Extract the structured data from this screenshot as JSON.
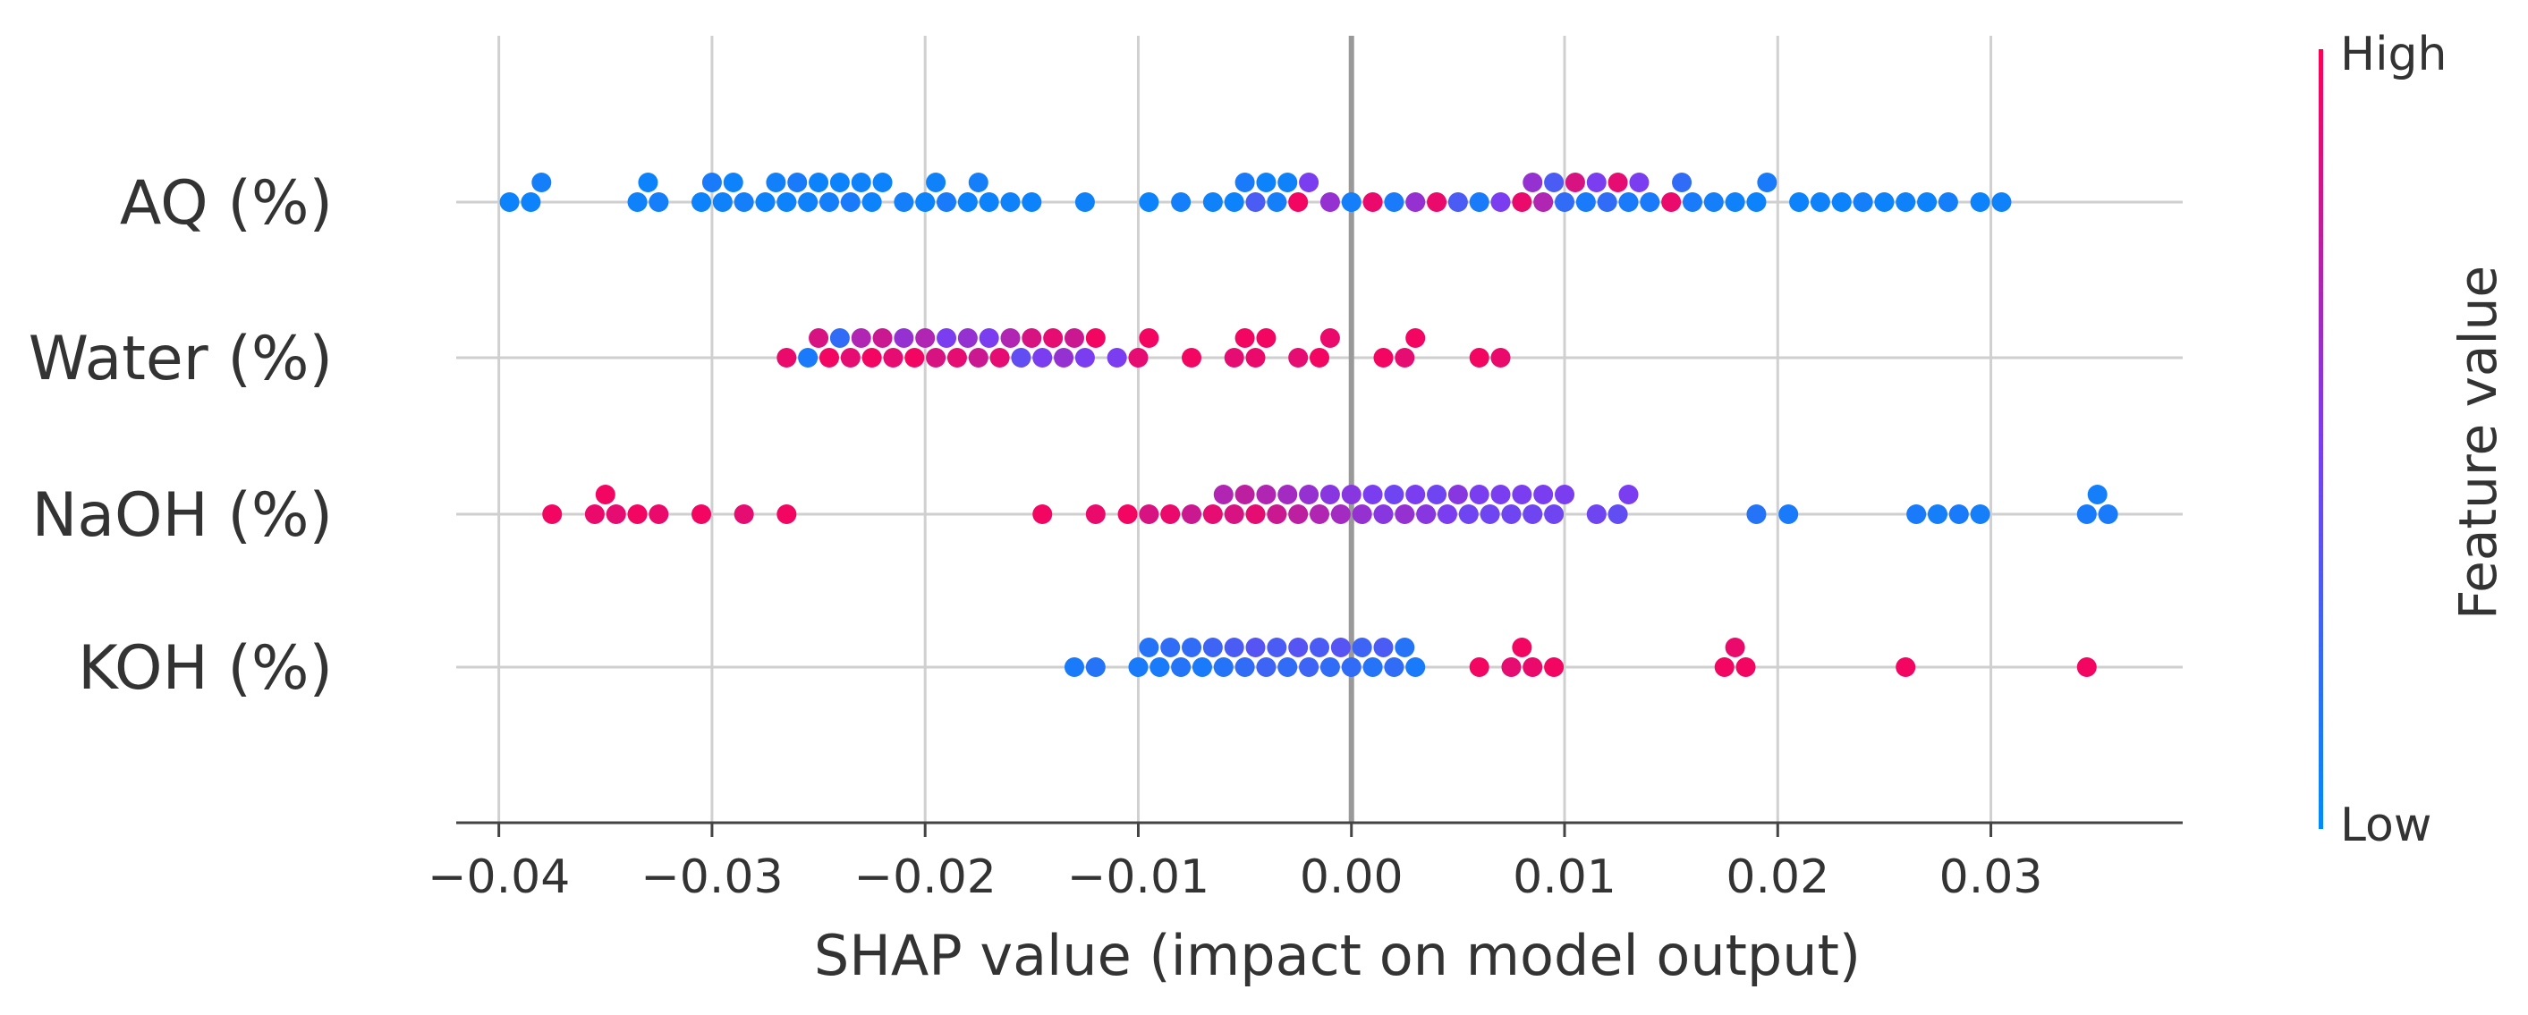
{
  "chart_data": {
    "type": "scatter",
    "subtype": "shap-beeswarm",
    "title": "",
    "xlabel": "SHAP value (impact on model output)",
    "ylabel": "",
    "xlim": [
      -0.042,
      0.039
    ],
    "x_ticks": [
      -0.04,
      -0.03,
      -0.02,
      -0.01,
      0.0,
      0.01,
      0.02,
      0.03
    ],
    "x_tick_labels": [
      "−0.04",
      "−0.03",
      "−0.02",
      "−0.01",
      "0.00",
      "0.01",
      "0.02",
      "0.03"
    ],
    "grid": true,
    "colorbar": {
      "title": "Feature value",
      "high_label": "High",
      "low_label": "Low",
      "high_color": "#ff0052",
      "low_color": "#008bfb"
    },
    "features": [
      {
        "name": "AQ (%)",
        "points": [
          {
            "x": -0.0395,
            "v": 0.05
          },
          {
            "x": -0.0385,
            "v": 0.05
          },
          {
            "x": -0.038,
            "v": 0.08
          },
          {
            "x": -0.0335,
            "v": 0.06
          },
          {
            "x": -0.033,
            "v": 0.05
          },
          {
            "x": -0.0325,
            "v": 0.08
          },
          {
            "x": -0.0305,
            "v": 0.05
          },
          {
            "x": -0.03,
            "v": 0.1
          },
          {
            "x": -0.0295,
            "v": 0.06
          },
          {
            "x": -0.029,
            "v": 0.05
          },
          {
            "x": -0.0285,
            "v": 0.08
          },
          {
            "x": -0.0275,
            "v": 0.05
          },
          {
            "x": -0.027,
            "v": 0.07
          },
          {
            "x": -0.0265,
            "v": 0.05
          },
          {
            "x": -0.026,
            "v": 0.1
          },
          {
            "x": -0.0255,
            "v": 0.06
          },
          {
            "x": -0.025,
            "v": 0.05
          },
          {
            "x": -0.0245,
            "v": 0.08
          },
          {
            "x": -0.024,
            "v": 0.05
          },
          {
            "x": -0.0235,
            "v": 0.1
          },
          {
            "x": -0.023,
            "v": 0.06
          },
          {
            "x": -0.0225,
            "v": 0.05
          },
          {
            "x": -0.022,
            "v": 0.05
          },
          {
            "x": -0.021,
            "v": 0.08
          },
          {
            "x": -0.02,
            "v": 0.05
          },
          {
            "x": -0.0195,
            "v": 0.06
          },
          {
            "x": -0.019,
            "v": 0.1
          },
          {
            "x": -0.018,
            "v": 0.05
          },
          {
            "x": -0.0175,
            "v": 0.08
          },
          {
            "x": -0.017,
            "v": 0.05
          },
          {
            "x": -0.016,
            "v": 0.06
          },
          {
            "x": -0.015,
            "v": 0.05
          },
          {
            "x": -0.0125,
            "v": 0.06
          },
          {
            "x": -0.0095,
            "v": 0.05
          },
          {
            "x": -0.008,
            "v": 0.08
          },
          {
            "x": -0.0065,
            "v": 0.06
          },
          {
            "x": -0.0055,
            "v": 0.05
          },
          {
            "x": -0.005,
            "v": 0.1
          },
          {
            "x": -0.0045,
            "v": 0.3
          },
          {
            "x": -0.004,
            "v": 0.05
          },
          {
            "x": -0.0035,
            "v": 0.08
          },
          {
            "x": -0.003,
            "v": 0.06
          },
          {
            "x": -0.0025,
            "v": 0.95
          },
          {
            "x": -0.002,
            "v": 0.5
          },
          {
            "x": -0.001,
            "v": 0.6
          },
          {
            "x": 0.0,
            "v": 0.08
          },
          {
            "x": 0.001,
            "v": 0.92
          },
          {
            "x": 0.002,
            "v": 0.1
          },
          {
            "x": 0.003,
            "v": 0.6
          },
          {
            "x": 0.004,
            "v": 0.92
          },
          {
            "x": 0.005,
            "v": 0.3
          },
          {
            "x": 0.006,
            "v": 0.1
          },
          {
            "x": 0.007,
            "v": 0.5
          },
          {
            "x": 0.008,
            "v": 0.92
          },
          {
            "x": 0.0085,
            "v": 0.6
          },
          {
            "x": 0.009,
            "v": 0.7
          },
          {
            "x": 0.0095,
            "v": 0.3
          },
          {
            "x": 0.01,
            "v": 0.2
          },
          {
            "x": 0.0105,
            "v": 0.85
          },
          {
            "x": 0.011,
            "v": 0.1
          },
          {
            "x": 0.0115,
            "v": 0.5
          },
          {
            "x": 0.012,
            "v": 0.2
          },
          {
            "x": 0.0125,
            "v": 0.9
          },
          {
            "x": 0.013,
            "v": 0.1
          },
          {
            "x": 0.0135,
            "v": 0.5
          },
          {
            "x": 0.014,
            "v": 0.1
          },
          {
            "x": 0.015,
            "v": 0.92
          },
          {
            "x": 0.0155,
            "v": 0.2
          },
          {
            "x": 0.016,
            "v": 0.1
          },
          {
            "x": 0.017,
            "v": 0.08
          },
          {
            "x": 0.018,
            "v": 0.06
          },
          {
            "x": 0.019,
            "v": 0.05
          },
          {
            "x": 0.0195,
            "v": 0.1
          },
          {
            "x": 0.021,
            "v": 0.05
          },
          {
            "x": 0.022,
            "v": 0.06
          },
          {
            "x": 0.023,
            "v": 0.05
          },
          {
            "x": 0.024,
            "v": 0.08
          },
          {
            "x": 0.025,
            "v": 0.05
          },
          {
            "x": 0.026,
            "v": 0.06
          },
          {
            "x": 0.027,
            "v": 0.05
          },
          {
            "x": 0.028,
            "v": 0.08
          },
          {
            "x": 0.0295,
            "v": 0.05
          },
          {
            "x": 0.0305,
            "v": 0.06
          }
        ]
      },
      {
        "name": "Water (%)",
        "points": [
          {
            "x": -0.0265,
            "v": 0.92
          },
          {
            "x": -0.0255,
            "v": 0.1
          },
          {
            "x": -0.025,
            "v": 0.85
          },
          {
            "x": -0.0245,
            "v": 0.95
          },
          {
            "x": -0.024,
            "v": 0.2
          },
          {
            "x": -0.0235,
            "v": 0.9
          },
          {
            "x": -0.023,
            "v": 0.7
          },
          {
            "x": -0.0225,
            "v": 0.95
          },
          {
            "x": -0.022,
            "v": 0.8
          },
          {
            "x": -0.0215,
            "v": 0.9
          },
          {
            "x": -0.021,
            "v": 0.6
          },
          {
            "x": -0.0205,
            "v": 0.95
          },
          {
            "x": -0.02,
            "v": 0.7
          },
          {
            "x": -0.0195,
            "v": 0.85
          },
          {
            "x": -0.019,
            "v": 0.5
          },
          {
            "x": -0.0185,
            "v": 0.9
          },
          {
            "x": -0.018,
            "v": 0.6
          },
          {
            "x": -0.0175,
            "v": 0.8
          },
          {
            "x": -0.017,
            "v": 0.5
          },
          {
            "x": -0.0165,
            "v": 0.9
          },
          {
            "x": -0.016,
            "v": 0.7
          },
          {
            "x": -0.0155,
            "v": 0.4
          },
          {
            "x": -0.015,
            "v": 0.85
          },
          {
            "x": -0.0145,
            "v": 0.5
          },
          {
            "x": -0.014,
            "v": 0.9
          },
          {
            "x": -0.0135,
            "v": 0.6
          },
          {
            "x": -0.013,
            "v": 0.8
          },
          {
            "x": -0.0125,
            "v": 0.5
          },
          {
            "x": -0.012,
            "v": 0.95
          },
          {
            "x": -0.011,
            "v": 0.5
          },
          {
            "x": -0.01,
            "v": 0.9
          },
          {
            "x": -0.0095,
            "v": 0.95
          },
          {
            "x": -0.0075,
            "v": 0.95
          },
          {
            "x": -0.0055,
            "v": 0.9
          },
          {
            "x": -0.005,
            "v": 0.95
          },
          {
            "x": -0.0045,
            "v": 0.92
          },
          {
            "x": -0.004,
            "v": 0.95
          },
          {
            "x": -0.0025,
            "v": 0.9
          },
          {
            "x": -0.0015,
            "v": 0.95
          },
          {
            "x": -0.001,
            "v": 0.92
          },
          {
            "x": 0.0015,
            "v": 0.95
          },
          {
            "x": 0.0025,
            "v": 0.9
          },
          {
            "x": 0.003,
            "v": 0.95
          },
          {
            "x": 0.006,
            "v": 0.95
          },
          {
            "x": 0.007,
            "v": 0.92
          }
        ]
      },
      {
        "name": "NaOH (%)",
        "points": [
          {
            "x": -0.0375,
            "v": 0.95
          },
          {
            "x": -0.0355,
            "v": 0.92
          },
          {
            "x": -0.035,
            "v": 0.95
          },
          {
            "x": -0.0345,
            "v": 0.9
          },
          {
            "x": -0.0335,
            "v": 0.95
          },
          {
            "x": -0.0325,
            "v": 0.92
          },
          {
            "x": -0.0305,
            "v": 0.95
          },
          {
            "x": -0.0285,
            "v": 0.9
          },
          {
            "x": -0.0265,
            "v": 0.95
          },
          {
            "x": -0.0145,
            "v": 0.95
          },
          {
            "x": -0.012,
            "v": 0.92
          },
          {
            "x": -0.0105,
            "v": 0.95
          },
          {
            "x": -0.0095,
            "v": 0.85
          },
          {
            "x": -0.0085,
            "v": 0.92
          },
          {
            "x": -0.0075,
            "v": 0.8
          },
          {
            "x": -0.0065,
            "v": 0.9
          },
          {
            "x": -0.006,
            "v": 0.7
          },
          {
            "x": -0.0055,
            "v": 0.85
          },
          {
            "x": -0.005,
            "v": 0.75
          },
          {
            "x": -0.0045,
            "v": 0.9
          },
          {
            "x": -0.004,
            "v": 0.7
          },
          {
            "x": -0.0035,
            "v": 0.8
          },
          {
            "x": -0.003,
            "v": 0.65
          },
          {
            "x": -0.0025,
            "v": 0.75
          },
          {
            "x": -0.002,
            "v": 0.6
          },
          {
            "x": -0.0015,
            "v": 0.7
          },
          {
            "x": -0.001,
            "v": 0.55
          },
          {
            "x": -0.0005,
            "v": 0.65
          },
          {
            "x": 0.0,
            "v": 0.55
          },
          {
            "x": 0.0005,
            "v": 0.6
          },
          {
            "x": 0.001,
            "v": 0.5
          },
          {
            "x": 0.0015,
            "v": 0.55
          },
          {
            "x": 0.002,
            "v": 0.45
          },
          {
            "x": 0.0025,
            "v": 0.6
          },
          {
            "x": 0.003,
            "v": 0.5
          },
          {
            "x": 0.0035,
            "v": 0.55
          },
          {
            "x": 0.004,
            "v": 0.45
          },
          {
            "x": 0.0045,
            "v": 0.5
          },
          {
            "x": 0.005,
            "v": 0.55
          },
          {
            "x": 0.0055,
            "v": 0.45
          },
          {
            "x": 0.006,
            "v": 0.5
          },
          {
            "x": 0.0065,
            "v": 0.45
          },
          {
            "x": 0.007,
            "v": 0.5
          },
          {
            "x": 0.0075,
            "v": 0.45
          },
          {
            "x": 0.008,
            "v": 0.5
          },
          {
            "x": 0.0085,
            "v": 0.45
          },
          {
            "x": 0.009,
            "v": 0.5
          },
          {
            "x": 0.0095,
            "v": 0.45
          },
          {
            "x": 0.01,
            "v": 0.5
          },
          {
            "x": 0.0115,
            "v": 0.45
          },
          {
            "x": 0.0125,
            "v": 0.4
          },
          {
            "x": 0.013,
            "v": 0.5
          },
          {
            "x": 0.019,
            "v": 0.15
          },
          {
            "x": 0.0205,
            "v": 0.1
          },
          {
            "x": 0.0265,
            "v": 0.1
          },
          {
            "x": 0.0275,
            "v": 0.08
          },
          {
            "x": 0.0285,
            "v": 0.1
          },
          {
            "x": 0.0295,
            "v": 0.08
          },
          {
            "x": 0.0345,
            "v": 0.1
          },
          {
            "x": 0.035,
            "v": 0.08
          },
          {
            "x": 0.0355,
            "v": 0.1
          }
        ]
      },
      {
        "name": "KOH (%)",
        "points": [
          {
            "x": -0.013,
            "v": 0.1
          },
          {
            "x": -0.012,
            "v": 0.15
          },
          {
            "x": -0.01,
            "v": 0.1
          },
          {
            "x": -0.0095,
            "v": 0.15
          },
          {
            "x": -0.009,
            "v": 0.1
          },
          {
            "x": -0.0085,
            "v": 0.2
          },
          {
            "x": -0.008,
            "v": 0.15
          },
          {
            "x": -0.0075,
            "v": 0.2
          },
          {
            "x": -0.007,
            "v": 0.1
          },
          {
            "x": -0.0065,
            "v": 0.25
          },
          {
            "x": -0.006,
            "v": 0.15
          },
          {
            "x": -0.0055,
            "v": 0.3
          },
          {
            "x": -0.005,
            "v": 0.2
          },
          {
            "x": -0.0045,
            "v": 0.35
          },
          {
            "x": -0.004,
            "v": 0.25
          },
          {
            "x": -0.0035,
            "v": 0.3
          },
          {
            "x": -0.003,
            "v": 0.2
          },
          {
            "x": -0.0025,
            "v": 0.35
          },
          {
            "x": -0.002,
            "v": 0.25
          },
          {
            "x": -0.0015,
            "v": 0.3
          },
          {
            "x": -0.001,
            "v": 0.2
          },
          {
            "x": -0.0005,
            "v": 0.35
          },
          {
            "x": 0.0,
            "v": 0.2
          },
          {
            "x": 0.0005,
            "v": 0.25
          },
          {
            "x": 0.001,
            "v": 0.15
          },
          {
            "x": 0.0015,
            "v": 0.3
          },
          {
            "x": 0.002,
            "v": 0.2
          },
          {
            "x": 0.0025,
            "v": 0.15
          },
          {
            "x": 0.003,
            "v": 0.1
          },
          {
            "x": 0.006,
            "v": 0.95
          },
          {
            "x": 0.0075,
            "v": 0.9
          },
          {
            "x": 0.008,
            "v": 0.95
          },
          {
            "x": 0.0085,
            "v": 0.92
          },
          {
            "x": 0.0095,
            "v": 0.95
          },
          {
            "x": 0.0175,
            "v": 0.95
          },
          {
            "x": 0.018,
            "v": 0.92
          },
          {
            "x": 0.0185,
            "v": 0.95
          },
          {
            "x": 0.026,
            "v": 0.95
          },
          {
            "x": 0.0345,
            "v": 0.95
          }
        ]
      }
    ]
  }
}
